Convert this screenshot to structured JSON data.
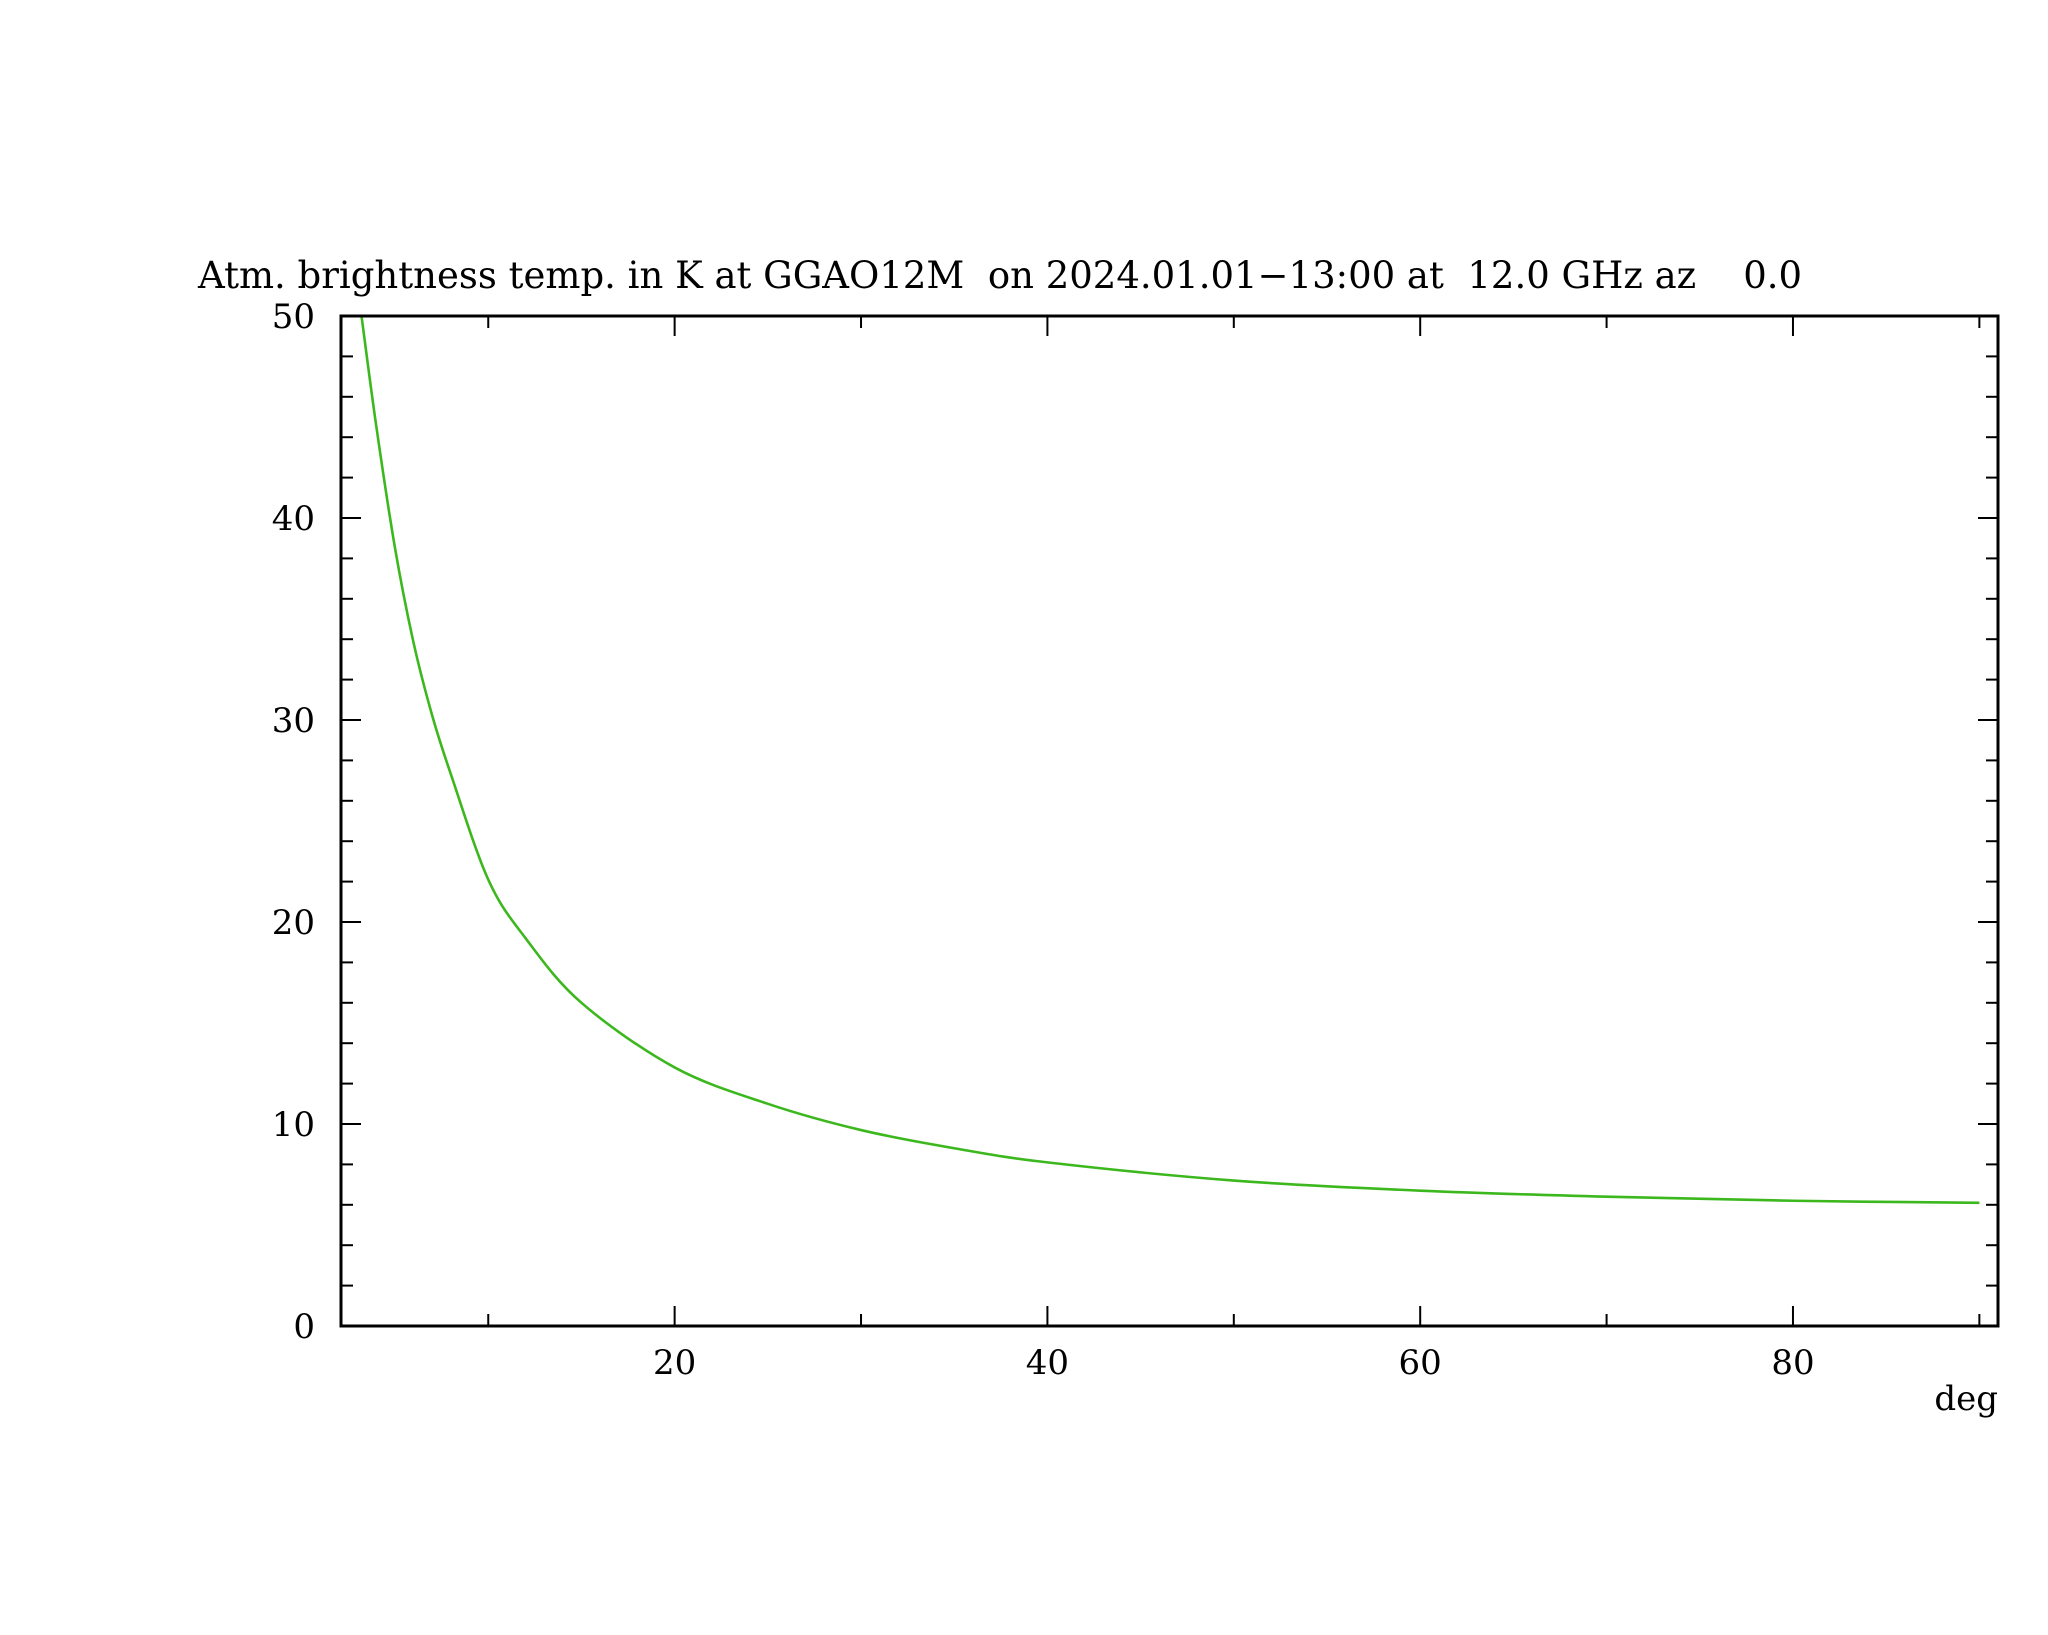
{
  "chart_data": {
    "type": "line",
    "title": "Atm. brightness temp. in K at GGAO12M  on 2024.01.01−13:00 at  12.0 GHz az    0.0",
    "xlabel": "deg",
    "ylabel": "",
    "xlim": [
      2.1,
      91
    ],
    "ylim": [
      0,
      50
    ],
    "x_major_ticks": [
      20,
      40,
      60,
      80
    ],
    "x_minor_step": 10,
    "y_major_ticks": [
      0,
      10,
      20,
      30,
      40,
      50
    ],
    "y_minor_step": 2,
    "grid": false,
    "series": [
      {
        "color": "#3cb81e",
        "x": [
          3.2,
          4,
          5,
          6,
          7,
          8,
          10,
          12,
          15,
          20,
          25,
          30,
          35,
          40,
          50,
          60,
          70,
          80,
          90
        ],
        "y": [
          50,
          44.5,
          38.5,
          33.8,
          30.2,
          27.3,
          22.1,
          19.2,
          16.0,
          12.8,
          11.0,
          9.7,
          8.8,
          8.1,
          7.2,
          6.7,
          6.4,
          6.2,
          6.1
        ]
      }
    ]
  }
}
